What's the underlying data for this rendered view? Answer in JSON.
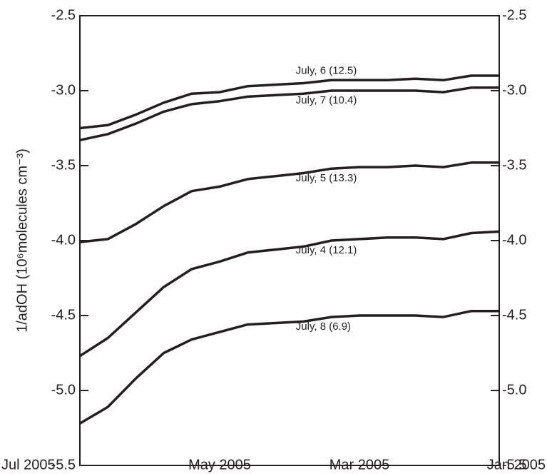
{
  "chart_data": {
    "type": "line",
    "ylabel": "1/adOH (10⁶molecules cm⁻³)",
    "categories": [
      "Jul 2005",
      null,
      null,
      null,
      null,
      "May 2005",
      null,
      null,
      null,
      null,
      "Mar 2005",
      null,
      null,
      null,
      null,
      "Jan 2005"
    ],
    "ylim": [
      -5.5,
      -2.5
    ],
    "yticks": [
      {
        "value": -2.5,
        "label": "-2.5"
      },
      {
        "value": -3,
        "label": "-3.0"
      },
      {
        "value": -3.5,
        "label": "-3.5"
      },
      {
        "value": -4,
        "label": "-4.0"
      },
      {
        "value": -4.5,
        "label": "-4.5"
      },
      {
        "value": -5,
        "label": "-5.0"
      },
      {
        "value": -5.5,
        "label": "-5.5"
      }
    ],
    "y2lim": [
      -5.5,
      -2.5
    ],
    "y2ticks": [
      {
        "value": -2.5,
        "label": "-2.5"
      },
      {
        "value": -3,
        "label": "-3.0"
      },
      {
        "value": -3.5,
        "label": "-3.5"
      },
      {
        "value": -4,
        "label": "-4.0"
      },
      {
        "value": -4.5,
        "label": "-4.5"
      },
      {
        "value": -5,
        "label": "-5.0"
      },
      {
        "value": -5.5,
        "label": "-5.5"
      }
    ],
    "grid": false,
    "series": [
      {
        "name": "July, 6 (12.5)",
        "color": "#231f20",
        "values": [
          -3.25,
          -3.23,
          -3.16,
          -3.08,
          -3.02,
          -3.01,
          -2.97,
          -2.96,
          -2.95,
          -2.93,
          -2.93,
          -2.93,
          -2.92,
          -2.93,
          -2.9,
          -2.9
        ]
      },
      {
        "name": "July, 7 (10.4)",
        "color": "#231f20",
        "values": [
          -3.33,
          -3.29,
          -3.22,
          -3.14,
          -3.09,
          -3.07,
          -3.04,
          -3.03,
          -3.02,
          -3.0,
          -3.0,
          -3.0,
          -3.0,
          -3.01,
          -2.98,
          -2.98
        ]
      },
      {
        "name": "July, 5 (13.3)",
        "color": "#231f20",
        "values": [
          -4.01,
          -3.99,
          -3.89,
          -3.77,
          -3.67,
          -3.64,
          -3.59,
          -3.57,
          -3.55,
          -3.52,
          -3.51,
          -3.51,
          -3.5,
          -3.51,
          -3.48,
          -3.48
        ]
      },
      {
        "name": "July, 4 (12.1)",
        "color": "#231f20",
        "values": [
          -4.77,
          -4.65,
          -4.48,
          -4.31,
          -4.19,
          -4.14,
          -4.08,
          -4.06,
          -4.04,
          -4.0,
          -3.99,
          -3.98,
          -3.98,
          -3.99,
          -3.95,
          -3.94
        ]
      },
      {
        "name": "July, 8 (6.9)",
        "color": "#231f20",
        "values": [
          -5.22,
          -5.11,
          -4.92,
          -4.75,
          -4.66,
          -4.61,
          -4.56,
          -4.55,
          -4.54,
          -4.51,
          -4.5,
          -4.5,
          -4.5,
          -4.51,
          -4.47,
          -4.47
        ]
      }
    ]
  }
}
